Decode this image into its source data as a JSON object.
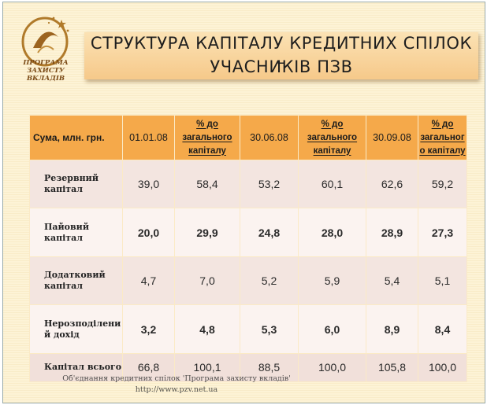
{
  "logo": {
    "line1": "ПРОГРАМА",
    "line2": "ЗАХИСТУ ВКЛАДІВ"
  },
  "title": {
    "line1": "СТРУКТУРА КАПІТАЛУ КРЕДИТНИХ СПІЛОК –",
    "line2": "УЧАСНИКІВ ПЗВ"
  },
  "table": {
    "headers": [
      "Сума, млн. грн.",
      "01.01.08",
      "% до загального капіталу",
      "30.06.08",
      "% до загального капіталу",
      "30.09.08",
      "% до загальног о капіталу"
    ],
    "rows": [
      {
        "label": "Резервний капітал",
        "values": [
          "39,0",
          "58,4",
          "53,2",
          "60,1",
          "62,6",
          "59,2"
        ]
      },
      {
        "label": "Пайовий капітал",
        "values": [
          "20,0",
          "29,9",
          "24,8",
          "28,0",
          "28,9",
          "27,3"
        ]
      },
      {
        "label": "Додатковий капітал",
        "values": [
          "4,7",
          "7,0",
          "5,2",
          "5,9",
          "5,4",
          "5,1"
        ]
      },
      {
        "label": "Нерозподілени й дохід",
        "values": [
          "3,2",
          "4,8",
          "5,3",
          "6,0",
          "8,9",
          "8,4"
        ]
      },
      {
        "label": "Капітал всього",
        "values": [
          "66,8",
          "100,1",
          "88,5",
          "100,0",
          "105,8",
          "100,0"
        ]
      }
    ]
  },
  "footer": {
    "line1": "Об'єднання кредитних спілок 'Програма захисту вкладів'",
    "line2": "http://www.pzv.net.ua"
  },
  "colors": {
    "header_bg": "#f5a94a",
    "title_box": "#f8d39a",
    "row_tinted": "#f3e5e0",
    "row_light": "#fbf3f0",
    "background": "#fdf3d6"
  }
}
